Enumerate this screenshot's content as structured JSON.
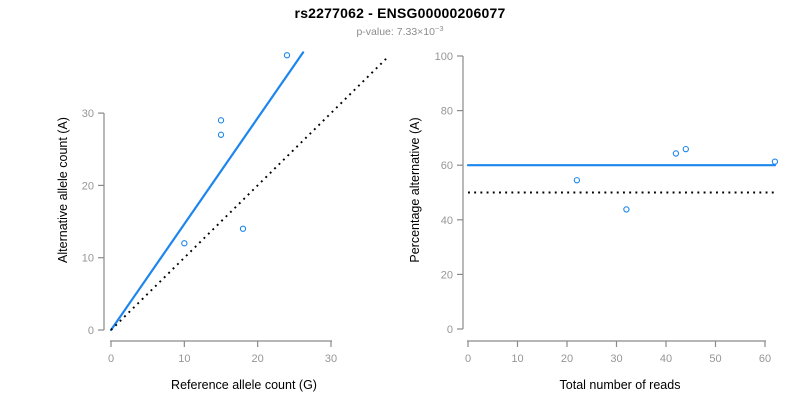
{
  "figure": {
    "title": "rs2277062 - ENSG00000206077",
    "subtitle_prefix": "p-value: 7.33×10",
    "subtitle_exponent": "−3",
    "colors": {
      "accent": "#1c86ee",
      "reference_line": "#000000",
      "axis": "#8a8a8a",
      "tick_label": "#969696",
      "axis_title": "#000000",
      "subtitle": "#8c8c8c"
    }
  },
  "chart_data": [
    {
      "type": "scatter",
      "name": "allele-count-scatter",
      "xlabel": "Reference allele count (G)",
      "ylabel": "Alternative allele count (A)",
      "xticks": [
        0,
        10,
        20,
        30
      ],
      "yticks": [
        0,
        10,
        20,
        30
      ],
      "xlim": [
        0,
        38
      ],
      "ylim": [
        0,
        39
      ],
      "grid": false,
      "legend": "none",
      "marker": "open-circle",
      "points": [
        [
          10,
          12
        ],
        [
          15,
          27
        ],
        [
          15,
          29
        ],
        [
          18,
          14
        ],
        [
          24,
          38
        ]
      ],
      "lines": [
        {
          "name": "fit-line",
          "style": "solid",
          "color": "#1c86ee",
          "x": [
            0,
            26.2
          ],
          "y": [
            0,
            38.4
          ]
        },
        {
          "name": "identity-line",
          "style": "dotted",
          "color": "#000000",
          "x": [
            0,
            37.8
          ],
          "y": [
            0,
            37.8
          ]
        }
      ]
    },
    {
      "type": "scatter",
      "name": "percentage-reads-scatter",
      "xlabel": "Total number of reads",
      "ylabel": "Percentage alternative (A)",
      "xticks": [
        0,
        10,
        20,
        30,
        40,
        50,
        60
      ],
      "yticks": [
        0,
        20,
        40,
        60,
        80,
        100
      ],
      "xlim": [
        0,
        62
      ],
      "ylim": [
        0,
        100
      ],
      "grid": false,
      "legend": "none",
      "marker": "open-circle",
      "points": [
        [
          22,
          54.5
        ],
        [
          32,
          43.8
        ],
        [
          42,
          64.3
        ],
        [
          44,
          65.9
        ],
        [
          62,
          61.3
        ]
      ],
      "lines": [
        {
          "name": "fit-line",
          "style": "solid",
          "color": "#1c86ee",
          "x": [
            0,
            62
          ],
          "y": [
            60,
            60
          ]
        },
        {
          "name": "fifty-percent-line",
          "style": "dotted",
          "color": "#000000",
          "x": [
            0,
            62
          ],
          "y": [
            50,
            50
          ]
        }
      ]
    }
  ]
}
